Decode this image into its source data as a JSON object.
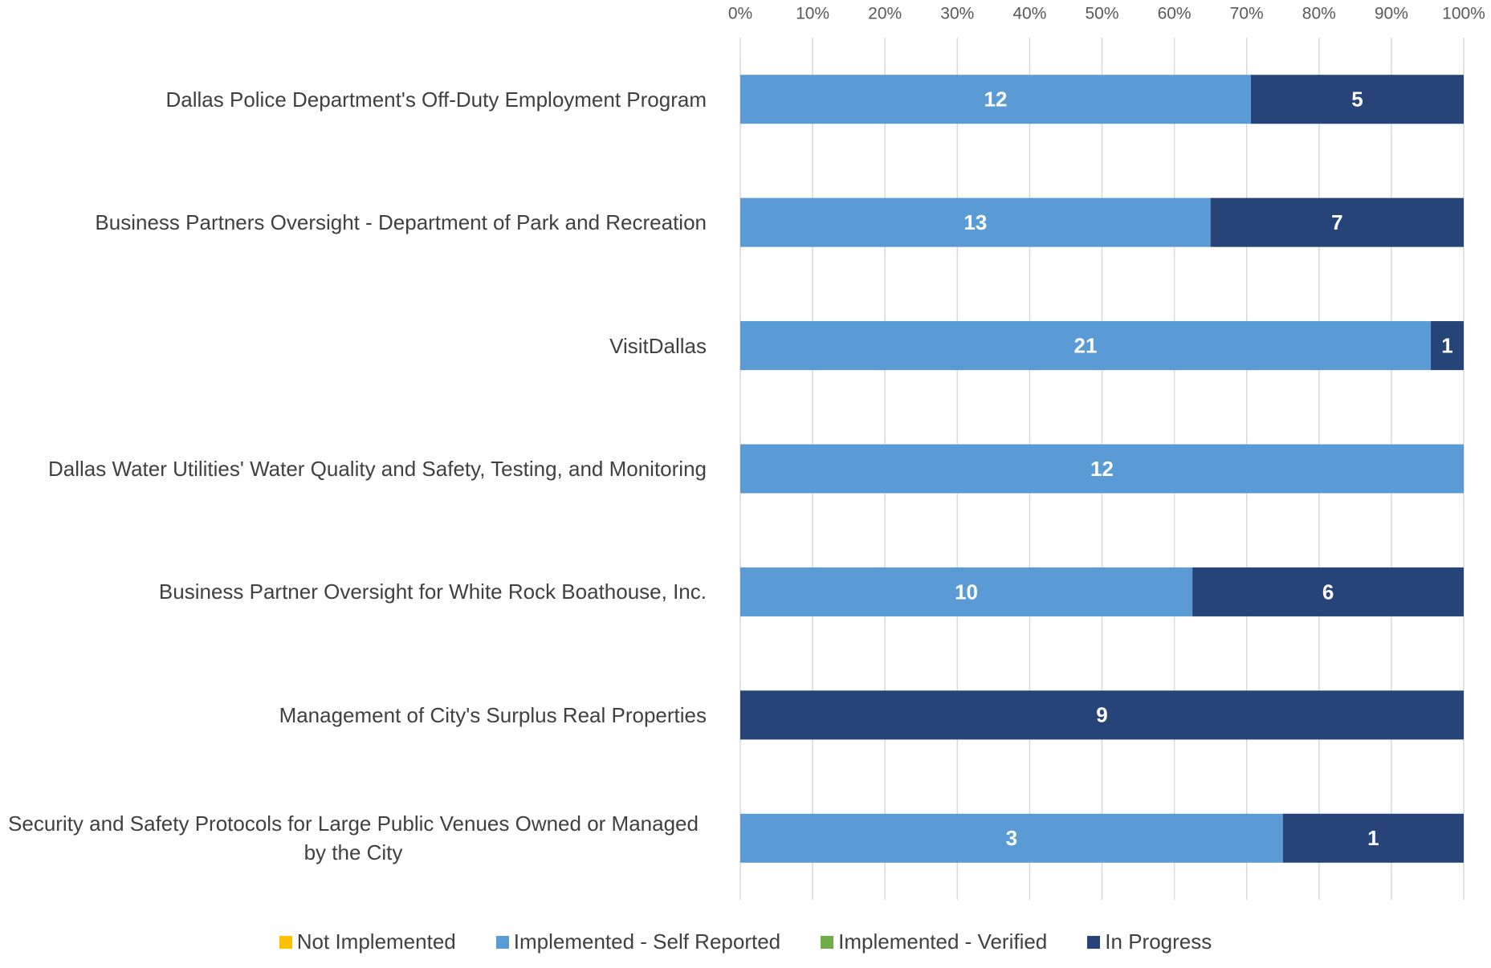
{
  "chart_data": {
    "type": "stacked-bar-100",
    "orientation": "horizontal",
    "categories": [
      "Dallas Police Department's Off-Duty Employment Program",
      "Business Partners Oversight - Department of Park and Recreation",
      "VisitDallas",
      "Dallas Water Utilities' Water Quality and Safety, Testing, and Monitoring",
      "Business Partner Oversight for White Rock Boathouse, Inc.",
      "Management of City's Surplus Real Properties",
      "Security and Safety Protocols for Large Public Venues Owned or Managed by the City"
    ],
    "series": [
      {
        "name": "Not Implemented",
        "color": "#ffc000",
        "values": [
          0,
          0,
          0,
          0,
          0,
          0,
          0
        ]
      },
      {
        "name": "Implemented - Self Reported",
        "color": "#5b9bd5",
        "values": [
          12,
          13,
          21,
          12,
          10,
          0,
          3
        ]
      },
      {
        "name": "Implemented - Verified",
        "color": "#70ad47",
        "values": [
          0,
          0,
          0,
          0,
          0,
          0,
          0
        ]
      },
      {
        "name": "In Progress",
        "color": "#264478",
        "values": [
          5,
          7,
          1,
          0,
          6,
          9,
          1
        ]
      }
    ],
    "xlim": [
      0,
      100
    ],
    "xticks": [
      {
        "value": 0,
        "label": "0%"
      },
      {
        "value": 10,
        "label": "10%"
      },
      {
        "value": 20,
        "label": "20%"
      },
      {
        "value": 30,
        "label": "30%"
      },
      {
        "value": 40,
        "label": "40%"
      },
      {
        "value": 50,
        "label": "50%"
      },
      {
        "value": 60,
        "label": "60%"
      },
      {
        "value": 70,
        "label": "70%"
      },
      {
        "value": 80,
        "label": "80%"
      },
      {
        "value": 90,
        "label": "90%"
      },
      {
        "value": 100,
        "label": "100%"
      }
    ],
    "grid": true,
    "legend": "bottom"
  }
}
